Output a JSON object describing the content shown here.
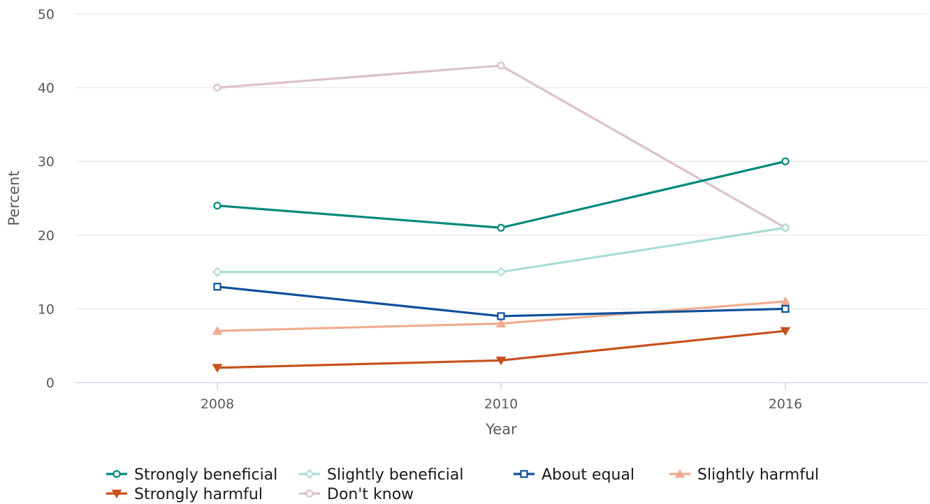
{
  "chart_data": {
    "type": "line",
    "x": [
      "2008",
      "2010",
      "2016"
    ],
    "xlabel": "Year",
    "ylabel": "Percent",
    "ylim": [
      0,
      50
    ],
    "yticks": [
      0,
      10,
      20,
      30,
      40,
      50
    ],
    "grid": true,
    "legend_position": "bottom",
    "series": [
      {
        "name": "Strongly beneficial",
        "values": [
          24,
          21,
          30
        ],
        "color": "#00897b",
        "marker": "circle"
      },
      {
        "name": "Slightly beneficial",
        "values": [
          15,
          15,
          21
        ],
        "color": "#a9dcd6",
        "marker": "diamond"
      },
      {
        "name": "About equal",
        "values": [
          13,
          9,
          10
        ],
        "color": "#0d4f9a",
        "marker": "square"
      },
      {
        "name": "Slightly harmful",
        "values": [
          7,
          8,
          11
        ],
        "color": "#eeac8f",
        "marker": "triangle-up"
      },
      {
        "name": "Strongly harmful",
        "values": [
          2,
          3,
          7
        ],
        "color": "#c6501c",
        "marker": "triangle-down"
      },
      {
        "name": "Don't know",
        "values": [
          40,
          43,
          21
        ],
        "color": "#dcc0cc",
        "marker": "circle"
      }
    ]
  }
}
